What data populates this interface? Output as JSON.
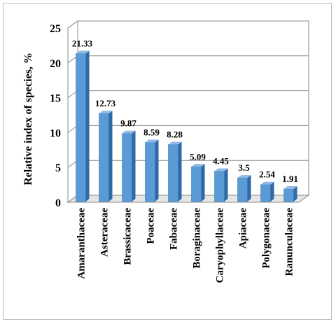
{
  "chart_data": {
    "type": "bar",
    "categories": [
      "Amaranthaceae",
      "Asteraceae",
      "Brassicaceae",
      "Poaceae",
      "Fabaceae",
      "Boraginaceae",
      "Caryophyllaceae",
      "Apiaceae",
      "Polygonaceae",
      "Ranunculaceae"
    ],
    "values": [
      21.33,
      12.73,
      9.87,
      8.59,
      8.28,
      5.09,
      4.45,
      3.5,
      2.54,
      1.91
    ],
    "data_labels": [
      "21.33",
      "12.73",
      "9.87",
      "8.59",
      "8.28",
      "5.09",
      "4.45",
      "3.5",
      "2.54",
      "1.91"
    ],
    "ylabel": "Relative index of species, %",
    "xlabel": "",
    "title": "",
    "ylim": [
      0,
      25
    ],
    "yticks": [
      "0",
      "5",
      "10",
      "15",
      "20",
      "25"
    ],
    "grid": true,
    "legend": "none",
    "bar_color": "#5b9bd5",
    "bar_side_color": "#2f6aa6",
    "bar_top_color": "#8fbbe6"
  }
}
